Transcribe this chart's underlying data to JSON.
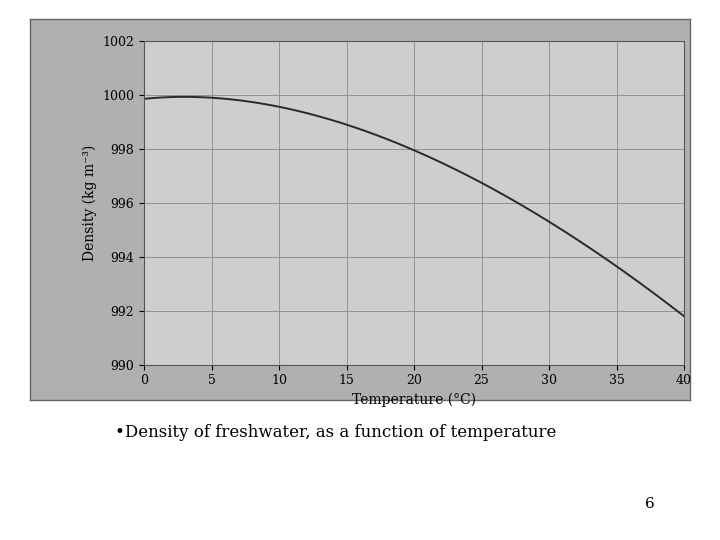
{
  "xlabel": "Temperature (°C)",
  "ylabel": "Density (kg m⁻³)",
  "xlim": [
    0,
    40
  ],
  "ylim": [
    990,
    1002
  ],
  "xticks": [
    0,
    5,
    10,
    15,
    20,
    25,
    30,
    35,
    40
  ],
  "yticks": [
    990,
    992,
    994,
    996,
    998,
    1000,
    1002
  ],
  "line_color": "#2a2a2a",
  "line_width": 1.4,
  "grid_color": "#888888",
  "outer_bg_color": "#b0b0b0",
  "plot_bg_color": "#cecece",
  "bullet_text": "•Density of freshwater, as a function of temperature",
  "page_number": "6",
  "fig_bg": "#ffffff",
  "tick_fontsize": 9,
  "label_fontsize": 10
}
